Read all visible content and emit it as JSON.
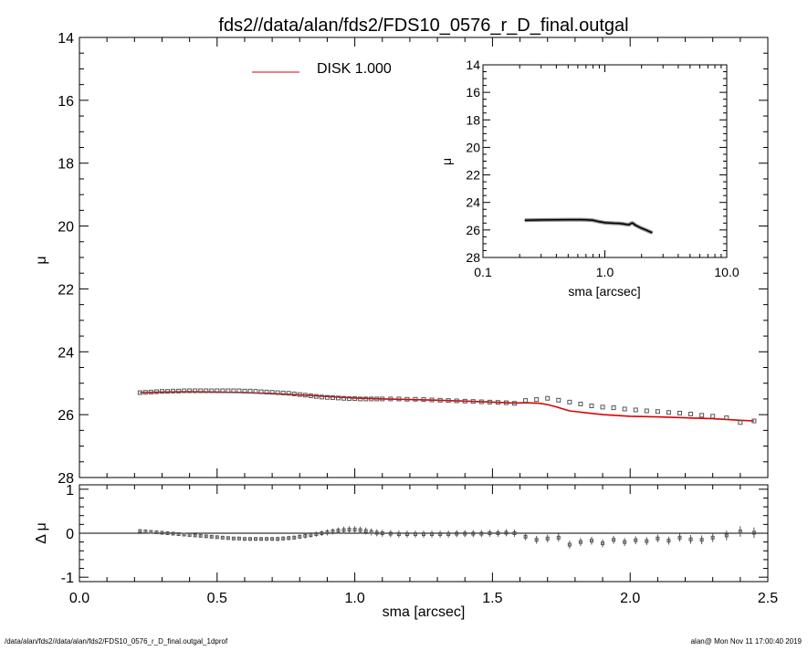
{
  "title": "fds2//data/alan/fds2/FDS10_0576_r_D_final.outgal",
  "footer_left": "/data/alan/fds2//data/alan/fds2/FDS10_0576_r_D_final.outgal_1dprof",
  "footer_right": "alan@  Mon Nov 11 17:00:40 2019",
  "colors": {
    "model": "#dd0000",
    "data": "#555555",
    "axes": "#000000"
  },
  "chart_data": [
    {
      "id": "main",
      "type": "scatter",
      "xlabel": "",
      "ylabel": "μ",
      "xlim": [
        0.0,
        2.5
      ],
      "ylim": [
        28,
        14
      ],
      "y_ticks": [
        14,
        16,
        18,
        20,
        22,
        24,
        26,
        28
      ],
      "legend": {
        "label": "DISK  1.000",
        "placement": "top-center"
      },
      "series": [
        {
          "name": "DISK  1.000",
          "kind": "line",
          "x": [
            0.22,
            0.3,
            0.4,
            0.5,
            0.6,
            0.7,
            0.8,
            0.9,
            1.0,
            1.1,
            1.2,
            1.3,
            1.4,
            1.5,
            1.58,
            1.62,
            1.67,
            1.7,
            1.73,
            1.78,
            1.85,
            1.9,
            2.0,
            2.1,
            2.2,
            2.3,
            2.4,
            2.45
          ],
          "y": [
            25.3,
            25.28,
            25.27,
            25.28,
            25.3,
            25.33,
            25.37,
            25.42,
            25.47,
            25.5,
            25.52,
            25.54,
            25.57,
            25.6,
            25.63,
            25.62,
            25.64,
            25.68,
            25.75,
            25.88,
            25.95,
            26.0,
            26.05,
            26.07,
            26.1,
            26.13,
            26.18,
            26.2
          ]
        },
        {
          "name": "",
          "kind": "markers",
          "x": [
            0.22,
            0.24,
            0.26,
            0.28,
            0.3,
            0.32,
            0.34,
            0.36,
            0.38,
            0.4,
            0.42,
            0.44,
            0.46,
            0.48,
            0.5,
            0.52,
            0.54,
            0.56,
            0.58,
            0.6,
            0.62,
            0.64,
            0.66,
            0.68,
            0.7,
            0.72,
            0.74,
            0.76,
            0.78,
            0.8,
            0.82,
            0.84,
            0.86,
            0.88,
            0.9,
            0.92,
            0.94,
            0.96,
            0.98,
            1.0,
            1.02,
            1.04,
            1.06,
            1.08,
            1.1,
            1.13,
            1.16,
            1.19,
            1.22,
            1.25,
            1.28,
            1.31,
            1.34,
            1.37,
            1.4,
            1.43,
            1.46,
            1.49,
            1.52,
            1.55,
            1.58,
            1.62,
            1.66,
            1.7,
            1.74,
            1.78,
            1.82,
            1.86,
            1.9,
            1.94,
            1.98,
            2.02,
            2.06,
            2.1,
            2.14,
            2.18,
            2.22,
            2.26,
            2.3,
            2.35,
            2.4,
            2.45
          ],
          "y": [
            25.3,
            25.29,
            25.28,
            25.27,
            25.26,
            25.26,
            25.25,
            25.25,
            25.24,
            25.24,
            25.24,
            25.24,
            25.24,
            25.24,
            25.24,
            25.24,
            25.24,
            25.24,
            25.24,
            25.25,
            25.25,
            25.26,
            25.27,
            25.28,
            25.29,
            25.3,
            25.31,
            25.32,
            25.34,
            25.36,
            25.38,
            25.4,
            25.42,
            25.44,
            25.45,
            25.46,
            25.47,
            25.48,
            25.49,
            25.49,
            25.5,
            25.5,
            25.5,
            25.5,
            25.5,
            25.5,
            25.5,
            25.51,
            25.51,
            25.52,
            25.53,
            25.54,
            25.55,
            25.56,
            25.57,
            25.58,
            25.59,
            25.6,
            25.61,
            25.62,
            25.64,
            25.55,
            25.52,
            25.48,
            25.54,
            25.6,
            25.66,
            25.72,
            25.76,
            25.78,
            25.82,
            25.85,
            25.88,
            25.9,
            25.93,
            25.95,
            25.98,
            26.02,
            26.05,
            26.1,
            26.25,
            26.2
          ]
        }
      ]
    },
    {
      "id": "inset",
      "type": "line",
      "xlabel": "sma [arcsec]",
      "ylabel": "μ",
      "xscale": "log",
      "xlim": [
        0.1,
        10.0
      ],
      "ylim": [
        28,
        14
      ],
      "x_ticks": [
        0.1,
        1.0,
        10.0
      ],
      "x_tick_labels": [
        "0.1",
        "1.0",
        "10.0"
      ],
      "y_ticks": [
        14,
        16,
        18,
        20,
        22,
        24,
        26,
        28
      ],
      "series": [
        {
          "name": "",
          "x": [
            0.22,
            0.3,
            0.4,
            0.5,
            0.6,
            0.7,
            0.8,
            0.9,
            1.0,
            1.1,
            1.2,
            1.3,
            1.4,
            1.5,
            1.58,
            1.62,
            1.67,
            1.7,
            1.78,
            1.9,
            2.0,
            2.1,
            2.2,
            2.3,
            2.45
          ],
          "y": [
            25.3,
            25.27,
            25.26,
            25.25,
            25.25,
            25.26,
            25.3,
            25.4,
            25.47,
            25.49,
            25.51,
            25.52,
            25.55,
            25.6,
            25.62,
            25.55,
            25.5,
            25.52,
            25.65,
            25.78,
            25.88,
            25.95,
            26.02,
            26.1,
            26.2
          ]
        }
      ]
    },
    {
      "id": "residual",
      "type": "scatter",
      "xlabel": "sma [arcsec]",
      "ylabel": "Δ μ",
      "xlim": [
        0.0,
        2.5
      ],
      "x_ticks": [
        0.0,
        0.5,
        1.0,
        1.5,
        2.0,
        2.5
      ],
      "x_tick_labels": [
        "0.0",
        "0.5",
        "1.0",
        "1.5",
        "2.0",
        "2.5"
      ],
      "ylim": [
        -1.1,
        1.1
      ],
      "y_ticks": [
        -1,
        0,
        1
      ],
      "y_tick_labels": [
        "-1",
        "0",
        "1"
      ],
      "zero_line": true,
      "series": [
        {
          "name": "",
          "x": [
            0.22,
            0.24,
            0.26,
            0.28,
            0.3,
            0.32,
            0.34,
            0.36,
            0.38,
            0.4,
            0.42,
            0.44,
            0.46,
            0.48,
            0.5,
            0.52,
            0.54,
            0.56,
            0.58,
            0.6,
            0.62,
            0.64,
            0.66,
            0.68,
            0.7,
            0.72,
            0.74,
            0.76,
            0.78,
            0.8,
            0.82,
            0.84,
            0.86,
            0.88,
            0.9,
            0.92,
            0.94,
            0.96,
            0.98,
            1.0,
            1.02,
            1.04,
            1.06,
            1.08,
            1.1,
            1.13,
            1.16,
            1.19,
            1.22,
            1.25,
            1.28,
            1.31,
            1.34,
            1.37,
            1.4,
            1.43,
            1.46,
            1.49,
            1.52,
            1.55,
            1.58,
            1.62,
            1.66,
            1.7,
            1.74,
            1.78,
            1.82,
            1.86,
            1.9,
            1.94,
            1.98,
            2.02,
            2.06,
            2.1,
            2.14,
            2.18,
            2.22,
            2.26,
            2.3,
            2.35,
            2.4,
            2.45
          ],
          "y": [
            0.05,
            0.04,
            0.03,
            0.02,
            0.01,
            0.0,
            -0.01,
            -0.02,
            -0.03,
            -0.04,
            -0.05,
            -0.06,
            -0.07,
            -0.08,
            -0.09,
            -0.1,
            -0.11,
            -0.12,
            -0.12,
            -0.13,
            -0.13,
            -0.13,
            -0.13,
            -0.13,
            -0.13,
            -0.13,
            -0.12,
            -0.11,
            -0.1,
            -0.08,
            -0.06,
            -0.04,
            -0.02,
            0.0,
            0.02,
            0.04,
            0.06,
            0.07,
            0.08,
            0.08,
            0.07,
            0.05,
            0.03,
            0.01,
            0.0,
            -0.01,
            -0.02,
            -0.02,
            -0.02,
            -0.02,
            -0.02,
            -0.02,
            -0.02,
            -0.01,
            -0.01,
            -0.01,
            -0.01,
            0.0,
            0.0,
            0.01,
            0.0,
            -0.08,
            -0.15,
            -0.12,
            -0.1,
            -0.26,
            -0.2,
            -0.17,
            -0.23,
            -0.15,
            -0.2,
            -0.16,
            -0.18,
            -0.12,
            -0.17,
            -0.1,
            -0.14,
            -0.15,
            -0.1,
            -0.05,
            0.04,
            0.01
          ],
          "err": [
            0.02,
            0.02,
            0.02,
            0.02,
            0.02,
            0.02,
            0.02,
            0.02,
            0.02,
            0.02,
            0.03,
            0.03,
            0.03,
            0.03,
            0.03,
            0.03,
            0.03,
            0.03,
            0.03,
            0.04,
            0.04,
            0.04,
            0.04,
            0.04,
            0.04,
            0.05,
            0.05,
            0.05,
            0.05,
            0.05,
            0.06,
            0.06,
            0.06,
            0.06,
            0.07,
            0.07,
            0.07,
            0.08,
            0.08,
            0.08,
            0.08,
            0.08,
            0.08,
            0.08,
            0.08,
            0.08,
            0.08,
            0.08,
            0.08,
            0.08,
            0.08,
            0.08,
            0.08,
            0.08,
            0.08,
            0.08,
            0.08,
            0.08,
            0.08,
            0.08,
            0.08,
            0.08,
            0.09,
            0.09,
            0.09,
            0.09,
            0.09,
            0.09,
            0.09,
            0.09,
            0.09,
            0.09,
            0.09,
            0.09,
            0.09,
            0.09,
            0.1,
            0.1,
            0.1,
            0.11,
            0.12,
            0.12
          ]
        }
      ]
    }
  ]
}
